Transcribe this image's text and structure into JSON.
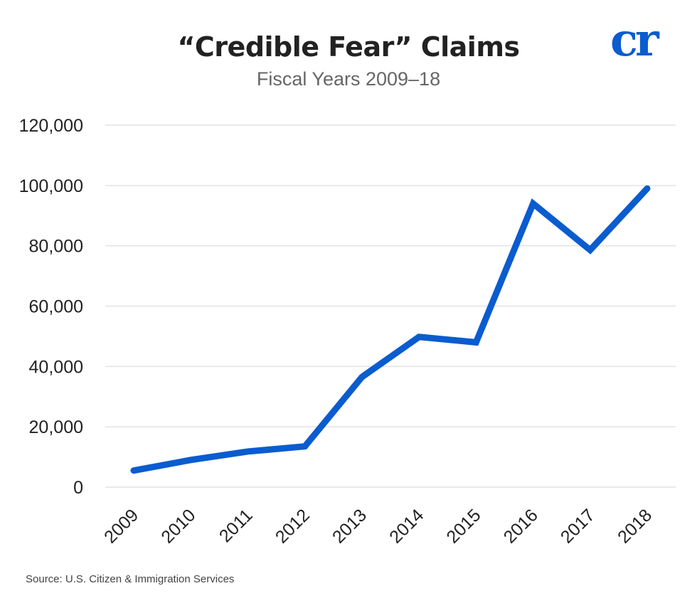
{
  "header": {
    "title": "“Credible Fear” Claims",
    "subtitle": "Fiscal Years 2009–18",
    "logo_text": "cr"
  },
  "footer": {
    "source": "Source: U.S. Citizen & Immigration Services"
  },
  "colors": {
    "line": "#0a5ccf",
    "logo": "#0a5ccf",
    "grid": "#e2e2e2"
  },
  "chart_data": {
    "type": "line",
    "title": "“Credible Fear” Claims",
    "subtitle": "Fiscal Years 2009–18",
    "xlabel": "",
    "ylabel": "",
    "x": [
      "2009",
      "2010",
      "2011",
      "2012",
      "2013",
      "2014",
      "2015",
      "2016",
      "2017",
      "2018"
    ],
    "series": [
      {
        "values": [
          5500,
          9000,
          11800,
          13500,
          36500,
          49800,
          48000,
          94000,
          78600,
          99000
        ]
      }
    ],
    "ylim": [
      0,
      120000
    ],
    "yticks": [
      "0",
      "20,000",
      "40,000",
      "60,000",
      "80,000",
      "100,000",
      "120,000"
    ],
    "ytick_values": [
      0,
      20000,
      40000,
      60000,
      80000,
      100000,
      120000
    ],
    "grid": "horizontal",
    "legend": "none"
  }
}
